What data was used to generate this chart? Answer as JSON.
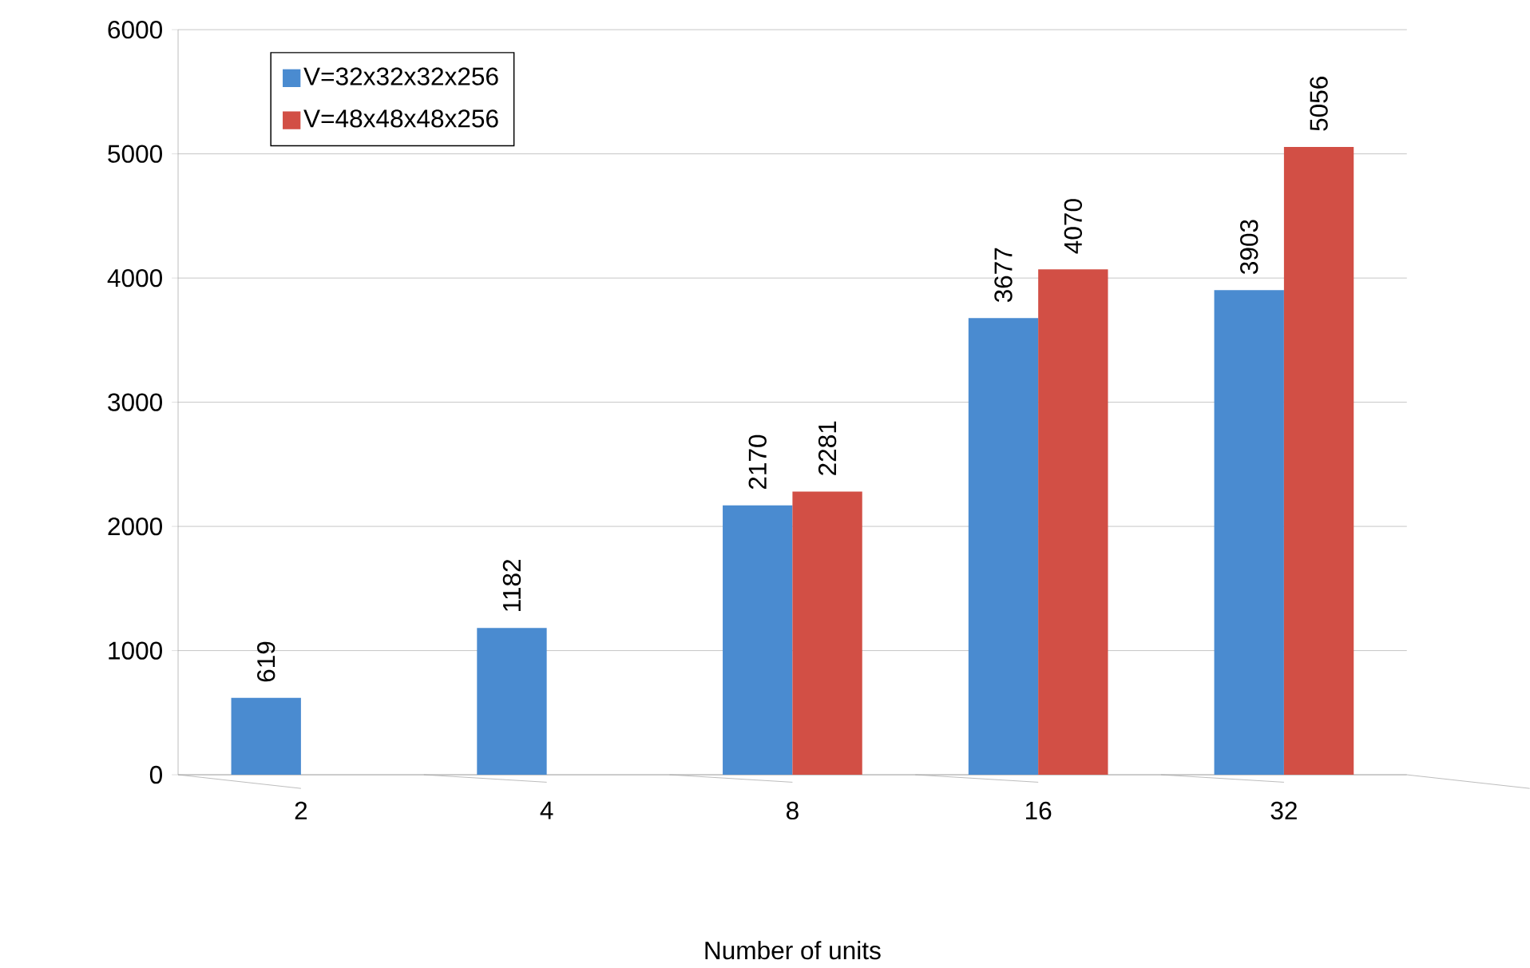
{
  "chart_data": {
    "type": "bar",
    "xlabel": "Number of units",
    "categories": [
      "2",
      "4",
      "8",
      "16",
      "32"
    ],
    "series": [
      {
        "name": "V=32x32x32x256",
        "color": "#4a8bd0",
        "values": [
          619,
          1182,
          2170,
          3677,
          3903
        ]
      },
      {
        "name": "V=48x48x48x256",
        "color": "#d24f45",
        "values": [
          null,
          null,
          2281,
          4070,
          5056
        ]
      }
    ],
    "ylim": [
      0,
      6000
    ],
    "yticks": [
      0,
      1000,
      2000,
      3000,
      4000,
      5000,
      6000
    ],
    "grid": "y",
    "legend": "top left",
    "data_labels": true
  }
}
